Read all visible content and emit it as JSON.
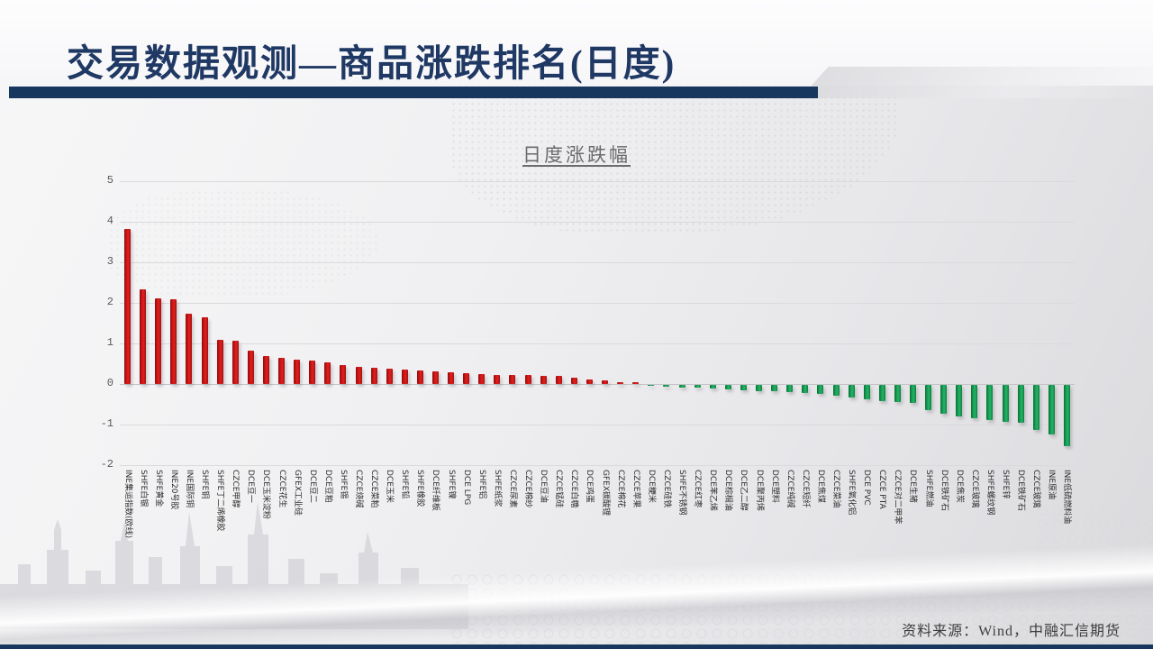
{
  "slide": {
    "title": "交易数据观测—商品涨跌排名(日度)",
    "source_note": "资料来源：Wind，中融汇信期货",
    "accent_color": "#17375e"
  },
  "chart_data": {
    "type": "bar",
    "title": "日度涨跌幅",
    "xlabel": "",
    "ylabel": "",
    "ylim": [
      -2,
      5
    ],
    "yticks": [
      5,
      4,
      3,
      2,
      1,
      0,
      -1,
      -2
    ],
    "grid": true,
    "legend": "none",
    "positive_color": "#cc1111",
    "negative_color": "#18a457",
    "categories": [
      "INE集运指数(欧线)",
      "SHFE白银",
      "SHFE黄金",
      "INE20号胶",
      "INE国际铜",
      "SHFE铜",
      "SHFE丁二烯橡胶",
      "CZCE甲醇",
      "DCE豆一",
      "DCE玉米淀粉",
      "CZCE花生",
      "GFEX工业硅",
      "DCE豆二",
      "DCE豆粕",
      "SHFE锡",
      "CZCE烧碱",
      "CZCE菜粕",
      "DCE玉米",
      "SHFE铅",
      "SHFE橡胶",
      "DCE纤维板",
      "SHFE镍",
      "DCE LPG",
      "SHFE铝",
      "SHFE纸浆",
      "CZCE尿素",
      "CZCE棉纱",
      "DCE豆油",
      "CZCE锰硅",
      "CZCE白糖",
      "DCE鸡蛋",
      "GFEX碳酸锂",
      "CZCE棉花",
      "CZCE苹果",
      "DCE粳米",
      "CZCE硅铁",
      "SHFE不锈钢",
      "CZCE红枣",
      "DCE苯乙烯",
      "DCE棕榈油",
      "DCE乙二醇",
      "DCE聚丙烯",
      "DCE塑料",
      "CZCE纯碱",
      "CZCE短纤",
      "DCE焦煤",
      "CZCE菜油",
      "SHFE氧化铝",
      "DCE PVC",
      "CZCE PTA",
      "CZCE对二甲苯",
      "DCE生猪",
      "SHFE燃油",
      "DCE铁矿石",
      "DCE焦炭",
      "CZCE玻璃",
      "SHFE螺纹钢",
      "SHFE锌",
      "DCE铁矿石",
      "CZCE玻璃",
      "INE原油",
      "INE低硫燃料油"
    ],
    "values": [
      3.82,
      2.33,
      2.12,
      2.08,
      1.73,
      1.65,
      1.1,
      1.07,
      0.82,
      0.7,
      0.65,
      0.6,
      0.57,
      0.53,
      0.46,
      0.42,
      0.4,
      0.38,
      0.36,
      0.34,
      0.31,
      0.28,
      0.27,
      0.25,
      0.23,
      0.23,
      0.22,
      0.2,
      0.19,
      0.15,
      0.12,
      0.08,
      0.05,
      0.04,
      -0.03,
      -0.05,
      -0.06,
      -0.07,
      -0.09,
      -0.11,
      -0.13,
      -0.15,
      -0.16,
      -0.18,
      -0.2,
      -0.23,
      -0.27,
      -0.3,
      -0.35,
      -0.4,
      -0.42,
      -0.44,
      -0.62,
      -0.72,
      -0.77,
      -0.83,
      -0.87,
      -0.9,
      -0.93,
      -1.12,
      -1.22,
      -1.5
    ]
  }
}
